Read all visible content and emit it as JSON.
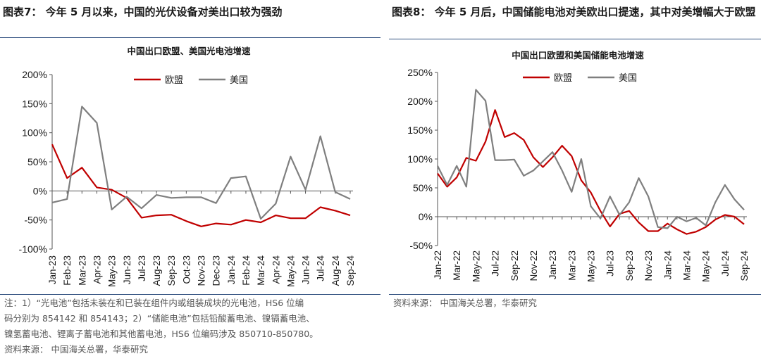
{
  "colors": {
    "eu": "#c00000",
    "us": "#7f7f7f",
    "rule": "#2e4e7e",
    "note": "#555555"
  },
  "left": {
    "figure_title": "图表7：  今年 5 月以来，中国的光伏设备对美出口较为强劲",
    "notes": [
      "注：1）“光电池”包括未装在和已装在组件内或组装成块的光电池，HS6 位编",
      "码分别为 854142 和 854143；2）“储能电池”包括铅酸蓄电池、镍镉蓄电池、",
      "镍氢蓄电池、锂离子蓄电池和其他蓄电池，HS6 位编码涉及 850710-850780。",
      "资料来源：  中国海关总署，华泰研究"
    ]
  },
  "right": {
    "figure_title": "图表8：  今年 5 月后，中国储能电池对美欧出口提速，其中对美增幅大于欧盟",
    "source": "资料来源：  中国海关总署，华泰研究"
  },
  "chart_data": [
    {
      "type": "line",
      "title": "中国出口欧盟、美国光电池增速",
      "xlabel": "",
      "ylabel": "",
      "ylim": [
        -100,
        200
      ],
      "yticks": [
        -100,
        -50,
        0,
        50,
        100,
        150,
        200
      ],
      "ytick_labels": [
        "-100%",
        "-50%",
        "0%",
        "50%",
        "100%",
        "150%",
        "200%"
      ],
      "x": [
        "Jan-23",
        "Feb-23",
        "Mar-23",
        "Apr-23",
        "May-23",
        "Jun-23",
        "Jul-23",
        "Aug-23",
        "Sep-23",
        "Oct-23",
        "Nov-23",
        "Dec-23",
        "Jan-24",
        "Feb-24",
        "Mar-24",
        "Apr-24",
        "May-24",
        "Jun-24",
        "Jul-24",
        "Aug-24",
        "Sep-24"
      ],
      "x_tick_labels": [
        "Jan-23",
        "Feb-23",
        "Mar-23",
        "Apr-23",
        "May-23",
        "Jun-23",
        "Jul-23",
        "Aug-23",
        "Sep-23",
        "Oct-23",
        "Nov-23",
        "Dec-23",
        "Jan-24",
        "Feb-24",
        "Mar-24",
        "Apr-24",
        "May-24",
        "Jun-24",
        "Jul-24",
        "Aug-24",
        "Sep-24"
      ],
      "legend_position": "top",
      "series": [
        {
          "name": "欧盟",
          "color": "#c00000",
          "values": [
            80,
            22,
            40,
            6,
            2,
            -12,
            -46,
            -42,
            -41,
            -52,
            -61,
            -56,
            -58,
            -50,
            -54,
            -42,
            -47,
            -47,
            -28,
            -34,
            -42
          ]
        },
        {
          "name": "美国",
          "color": "#7f7f7f",
          "values": [
            -20,
            -14,
            145,
            117,
            -32,
            -10,
            -30,
            -7,
            -12,
            -11,
            -11,
            -21,
            22,
            25,
            -48,
            -22,
            59,
            2,
            94,
            -2,
            -14
          ]
        }
      ]
    },
    {
      "type": "line",
      "title": "中国出口欧盟和美国储能电池增速",
      "xlabel": "",
      "ylabel": "",
      "ylim": [
        -50,
        250
      ],
      "yticks": [
        -50,
        0,
        50,
        100,
        150,
        200,
        250
      ],
      "ytick_labels": [
        "-50%",
        "0%",
        "50%",
        "100%",
        "150%",
        "200%",
        "250%"
      ],
      "x": [
        "Jan-22",
        "Feb-22",
        "Mar-22",
        "Apr-22",
        "May-22",
        "Jun-22",
        "Jul-22",
        "Aug-22",
        "Sep-22",
        "Oct-22",
        "Nov-22",
        "Dec-22",
        "Jan-23",
        "Feb-23",
        "Mar-23",
        "Apr-23",
        "May-23",
        "Jun-23",
        "Jul-23",
        "Aug-23",
        "Sep-23",
        "Oct-23",
        "Nov-23",
        "Dec-23",
        "Jan-24",
        "Feb-24",
        "Mar-24",
        "Apr-24",
        "May-24",
        "Jun-24",
        "Jul-24",
        "Aug-24",
        "Sep-24"
      ],
      "x_tick_labels": [
        "Jan-22",
        "Mar-22",
        "May-22",
        "Jul-22",
        "Sep-22",
        "Nov-22",
        "Jan-23",
        "Mar-23",
        "May-23",
        "Jul-23",
        "Sep-23",
        "Nov-23",
        "Jan-24",
        "Mar-24",
        "May-24",
        "Jul-24",
        "Sep-24"
      ],
      "legend_position": "top",
      "series": [
        {
          "name": "欧盟",
          "color": "#c00000",
          "values": [
            75,
            52,
            68,
            102,
            97,
            130,
            185,
            138,
            145,
            133,
            103,
            86,
            103,
            123,
            105,
            63,
            42,
            10,
            -17,
            5,
            10,
            -10,
            -25,
            -25,
            -12,
            -22,
            -30,
            -26,
            -18,
            -5,
            3,
            0,
            -13
          ]
        },
        {
          "name": "美国",
          "color": "#7f7f7f",
          "values": [
            88,
            55,
            88,
            52,
            220,
            201,
            98,
            98,
            99,
            71,
            80,
            96,
            112,
            80,
            43,
            100,
            18,
            -3,
            35,
            3,
            25,
            67,
            35,
            -18,
            -20,
            0,
            -8,
            -2,
            -15,
            25,
            55,
            30,
            12
          ]
        }
      ]
    }
  ]
}
